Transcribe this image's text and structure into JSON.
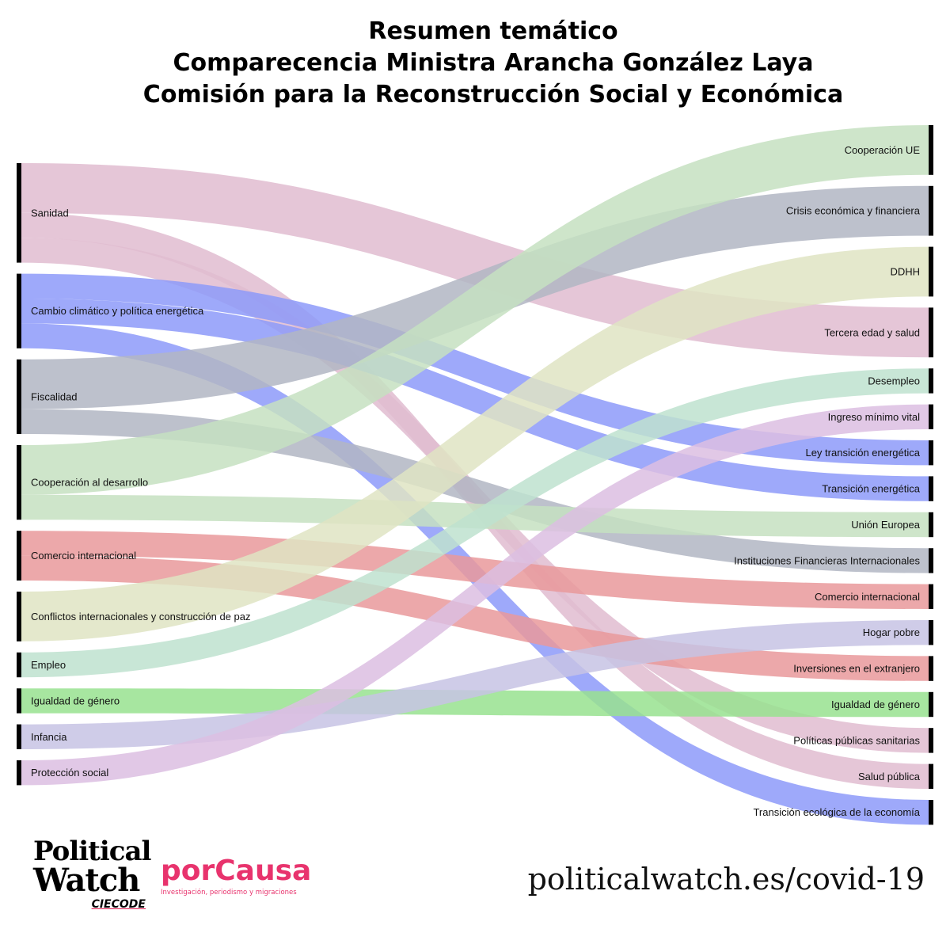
{
  "title": {
    "line1": "Resumen temático",
    "line2": "Comparecencia Ministra Arancha González Laya",
    "line3": "Comisión para la Reconstrucción Social y Económica"
  },
  "sources": [
    {
      "label": "Sanidad",
      "color": "#e1bcd0"
    },
    {
      "label": "Cambio climático y política energética",
      "color": "#8d9af9"
    },
    {
      "label": "Fiscalidad",
      "color": "#b2b6c3"
    },
    {
      "label": "Cooperación al desarrollo",
      "color": "#c5e0c1"
    },
    {
      "label": "Comercio internacional",
      "color": "#e9999b"
    },
    {
      "label": "Conflictos internacionales y construcción de paz",
      "color": "#dfe4c3"
    },
    {
      "label": "Empleo",
      "color": "#bee2cf"
    },
    {
      "label": "Igualdad de género",
      "color": "#98e28f"
    },
    {
      "label": "Infancia",
      "color": "#c7c3e4"
    },
    {
      "label": "Protección social",
      "color": "#dcbee2"
    }
  ],
  "targets": [
    {
      "label": "Cooperación UE"
    },
    {
      "label": "Crisis económica y financiera"
    },
    {
      "label": "DDHH"
    },
    {
      "label": "Tercera edad y salud"
    },
    {
      "label": "Desempleo"
    },
    {
      "label": "Ingreso mínimo vital"
    },
    {
      "label": "Ley transición energética"
    },
    {
      "label": "Transición energética"
    },
    {
      "label": "Unión Europea"
    },
    {
      "label": "Instituciones Financieras Internacionales"
    },
    {
      "label": "Comercio internacional"
    },
    {
      "label": "Hogar pobre"
    },
    {
      "label": "Inversiones en el extranjero"
    },
    {
      "label": "Igualdad de género"
    },
    {
      "label": "Políticas públicas sanitarias"
    },
    {
      "label": "Salud pública"
    },
    {
      "label": "Transición ecológica de la economía"
    }
  ],
  "flows": [
    {
      "source": 0,
      "target": 3,
      "value": 4
    },
    {
      "source": 0,
      "target": 15,
      "value": 2
    },
    {
      "source": 0,
      "target": 14,
      "value": 2
    },
    {
      "source": 1,
      "target": 6,
      "value": 2
    },
    {
      "source": 1,
      "target": 7,
      "value": 2
    },
    {
      "source": 1,
      "target": 16,
      "value": 2
    },
    {
      "source": 2,
      "target": 1,
      "value": 4
    },
    {
      "source": 2,
      "target": 9,
      "value": 2
    },
    {
      "source": 3,
      "target": 0,
      "value": 4
    },
    {
      "source": 3,
      "target": 8,
      "value": 2
    },
    {
      "source": 4,
      "target": 10,
      "value": 2
    },
    {
      "source": 4,
      "target": 12,
      "value": 2
    },
    {
      "source": 5,
      "target": 2,
      "value": 4
    },
    {
      "source": 6,
      "target": 4,
      "value": 2
    },
    {
      "source": 7,
      "target": 13,
      "value": 2
    },
    {
      "source": 8,
      "target": 11,
      "value": 2
    },
    {
      "source": 9,
      "target": 5,
      "value": 2
    }
  ],
  "footer": {
    "pw_line1": "Political",
    "pw_line2": "Watch",
    "pw_line3": "CIECODE",
    "porcausa_name": "porCausa",
    "porcausa_tagline": "Investigación, periodismo y migraciones",
    "url": "politicalwatch.es/covid-19"
  }
}
